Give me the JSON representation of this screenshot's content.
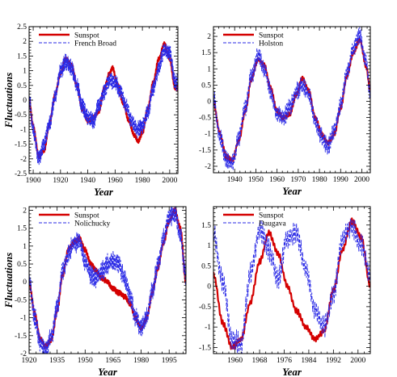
{
  "figure": {
    "y_axis_label": "Fluctuations"
  },
  "chart_data": [
    {
      "type": "line",
      "xlabel": "Year",
      "ylabel": "Fluctuations",
      "xlim": [
        1897,
        2006
      ],
      "ylim": [
        -2.5,
        2.5
      ],
      "xticks": [
        1900,
        1920,
        1940,
        1960,
        1980,
        2000
      ],
      "yticks": [
        -2.5,
        -2,
        -1.5,
        -1,
        -0.5,
        0,
        0.5,
        1,
        1.5,
        2,
        2.5
      ],
      "legend_position": "top-left",
      "series": [
        {
          "name": "Sunspot",
          "color": "#d40000",
          "style": "solid",
          "x": [
            1897,
            1900,
            1904,
            1908,
            1912,
            1916,
            1920,
            1924,
            1928,
            1932,
            1936,
            1940,
            1944,
            1948,
            1952,
            1956,
            1958,
            1962,
            1966,
            1970,
            1974,
            1977,
            1980,
            1984,
            1988,
            1992,
            1996,
            2000,
            2004
          ],
          "y": [
            0.0,
            -0.9,
            -1.9,
            -1.7,
            -0.8,
            0.2,
            0.9,
            1.4,
            1.2,
            0.5,
            -0.3,
            -0.7,
            -0.6,
            -0.4,
            0.4,
            0.9,
            1.1,
            0.5,
            -0.1,
            -0.7,
            -1.2,
            -1.4,
            -1.1,
            -0.3,
            0.6,
            1.4,
            1.9,
            1.4,
            0.4
          ]
        },
        {
          "name": "French Broad",
          "color": "#2a2ae6",
          "style": "dashed",
          "x": [
            1897,
            1900,
            1904,
            1908,
            1912,
            1916,
            1920,
            1924,
            1928,
            1932,
            1936,
            1940,
            1944,
            1948,
            1952,
            1956,
            1960,
            1964,
            1968,
            1972,
            1976,
            1980,
            1984,
            1988,
            1992,
            1996,
            2000,
            2004
          ],
          "y": [
            0.1,
            -1.0,
            -2.0,
            -1.5,
            -0.8,
            0.1,
            1.0,
            1.3,
            1.1,
            0.5,
            -0.2,
            -0.6,
            -0.7,
            -0.2,
            0.3,
            0.7,
            0.6,
            0.3,
            -0.2,
            -0.7,
            -1.0,
            -0.9,
            -0.4,
            0.4,
            1.1,
            1.7,
            1.6,
            0.6
          ]
        }
      ]
    },
    {
      "type": "line",
      "xlabel": "Year",
      "ylabel": "",
      "xlim": [
        1930,
        2004
      ],
      "ylim": [
        -2.2,
        2.3
      ],
      "xticks": [
        1940,
        1950,
        1960,
        1970,
        1980,
        1990,
        2000
      ],
      "yticks": [
        -2,
        -1.5,
        -1,
        -0.5,
        0,
        0.5,
        1,
        1.5,
        2
      ],
      "legend_position": "top-left",
      "series": [
        {
          "name": "Sunspot",
          "color": "#d40000",
          "style": "solid",
          "x": [
            1930,
            1933,
            1936,
            1939,
            1942,
            1945,
            1948,
            1951,
            1954,
            1957,
            1960,
            1963,
            1966,
            1969,
            1972,
            1975,
            1978,
            1981,
            1984,
            1987,
            1990,
            1993,
            1996,
            1999,
            2002,
            2004
          ],
          "y": [
            0.0,
            -1.0,
            -1.7,
            -1.8,
            -1.2,
            -0.3,
            0.7,
            1.3,
            1.1,
            0.4,
            -0.3,
            -0.5,
            -0.4,
            0.2,
            0.7,
            0.3,
            -0.5,
            -1.0,
            -1.3,
            -1.0,
            -0.2,
            0.8,
            1.5,
            1.9,
            1.1,
            0.3
          ]
        },
        {
          "name": "Holston",
          "color": "#2a2ae6",
          "style": "dashed",
          "x": [
            1930,
            1933,
            1936,
            1939,
            1942,
            1945,
            1948,
            1951,
            1954,
            1957,
            1960,
            1963,
            1966,
            1969,
            1972,
            1975,
            1978,
            1981,
            1984,
            1987,
            1990,
            1993,
            1996,
            1999,
            2002,
            2004
          ],
          "y": [
            0.1,
            -1.1,
            -1.8,
            -1.9,
            -1.1,
            -0.2,
            0.8,
            1.4,
            1.0,
            0.3,
            -0.4,
            -0.5,
            -0.2,
            0.3,
            0.5,
            0.2,
            -0.6,
            -1.1,
            -1.4,
            -0.9,
            -0.1,
            0.9,
            1.6,
            2.0,
            1.2,
            0.2
          ]
        }
      ]
    },
    {
      "type": "line",
      "xlabel": "Year",
      "ylabel": "Fluctuations",
      "xlim": [
        1920,
        2004
      ],
      "ylim": [
        -2.0,
        2.1
      ],
      "xticks": [
        1920,
        1935,
        1950,
        1965,
        1980,
        1995
      ],
      "yticks": [
        -2,
        -1.5,
        -1,
        -0.5,
        0,
        0.5,
        1,
        1.5,
        2
      ],
      "legend_position": "top-left",
      "series": [
        {
          "name": "Sunspot",
          "color": "#d40000",
          "style": "solid",
          "x": [
            1920,
            1923,
            1926,
            1929,
            1932,
            1935,
            1938,
            1941,
            1944,
            1947,
            1950,
            1953,
            1956,
            1959,
            1962,
            1965,
            1968,
            1971,
            1974,
            1977,
            1980,
            1983,
            1986,
            1989,
            1992,
            1995,
            1998,
            2001,
            2004
          ],
          "y": [
            0.0,
            -0.9,
            -1.6,
            -1.8,
            -1.6,
            -0.8,
            0.2,
            0.9,
            1.1,
            1.2,
            0.9,
            0.5,
            0.3,
            0.1,
            0.0,
            -0.2,
            -0.3,
            -0.4,
            -0.6,
            -1.0,
            -1.3,
            -1.0,
            -0.3,
            0.4,
            1.1,
            1.7,
            2.0,
            1.5,
            0.0
          ]
        },
        {
          "name": "Nolichucky",
          "color": "#2a2ae6",
          "style": "dashed",
          "x": [
            1920,
            1923,
            1926,
            1929,
            1932,
            1935,
            1938,
            1941,
            1944,
            1947,
            1950,
            1953,
            1956,
            1959,
            1962,
            1965,
            1968,
            1971,
            1974,
            1977,
            1980,
            1983,
            1986,
            1989,
            1992,
            1995,
            1998,
            2001,
            2004
          ],
          "y": [
            0.1,
            -1.0,
            -1.7,
            -1.9,
            -1.5,
            -0.7,
            0.3,
            0.8,
            1.1,
            1.1,
            0.6,
            0.2,
            0.1,
            0.3,
            0.5,
            0.6,
            0.5,
            0.1,
            -0.4,
            -1.0,
            -1.3,
            -1.0,
            -0.2,
            0.5,
            1.2,
            1.8,
            1.9,
            1.3,
            0.1
          ]
        }
      ]
    },
    {
      "type": "line",
      "xlabel": "Year",
      "ylabel": "",
      "xlim": [
        1953,
        2004
      ],
      "ylim": [
        -1.65,
        1.95
      ],
      "xticks": [
        1960,
        1968,
        1976,
        1984,
        1992,
        2000
      ],
      "yticks": [
        -1.5,
        -1,
        -0.5,
        0,
        0.5,
        1,
        1.5
      ],
      "legend_position": "top-left",
      "series": [
        {
          "name": "Sunspot",
          "color": "#d40000",
          "style": "solid",
          "x": [
            1953,
            1956,
            1959,
            1962,
            1965,
            1968,
            1971,
            1974,
            1977,
            1980,
            1983,
            1986,
            1989,
            1992,
            1995,
            1998,
            2001,
            2004
          ],
          "y": [
            0.3,
            -0.9,
            -1.5,
            -1.3,
            -0.4,
            0.6,
            1.3,
            0.8,
            0.0,
            -0.6,
            -1.0,
            -1.3,
            -1.1,
            -0.1,
            0.9,
            1.6,
            1.2,
            0.0
          ]
        },
        {
          "name": "Daugava",
          "color": "#2a2ae6",
          "style": "dashed",
          "x": [
            1953,
            1956,
            1959,
            1962,
            1965,
            1968,
            1971,
            1974,
            1977,
            1980,
            1983,
            1986,
            1989,
            1992,
            1995,
            1998,
            2001,
            2004
          ],
          "y": [
            1.3,
            0.1,
            -1.3,
            -1.4,
            0.3,
            1.4,
            0.9,
            0.2,
            1.2,
            1.3,
            0.4,
            -0.6,
            -1.0,
            -0.2,
            1.2,
            1.5,
            1.0,
            0.3
          ]
        }
      ]
    }
  ]
}
